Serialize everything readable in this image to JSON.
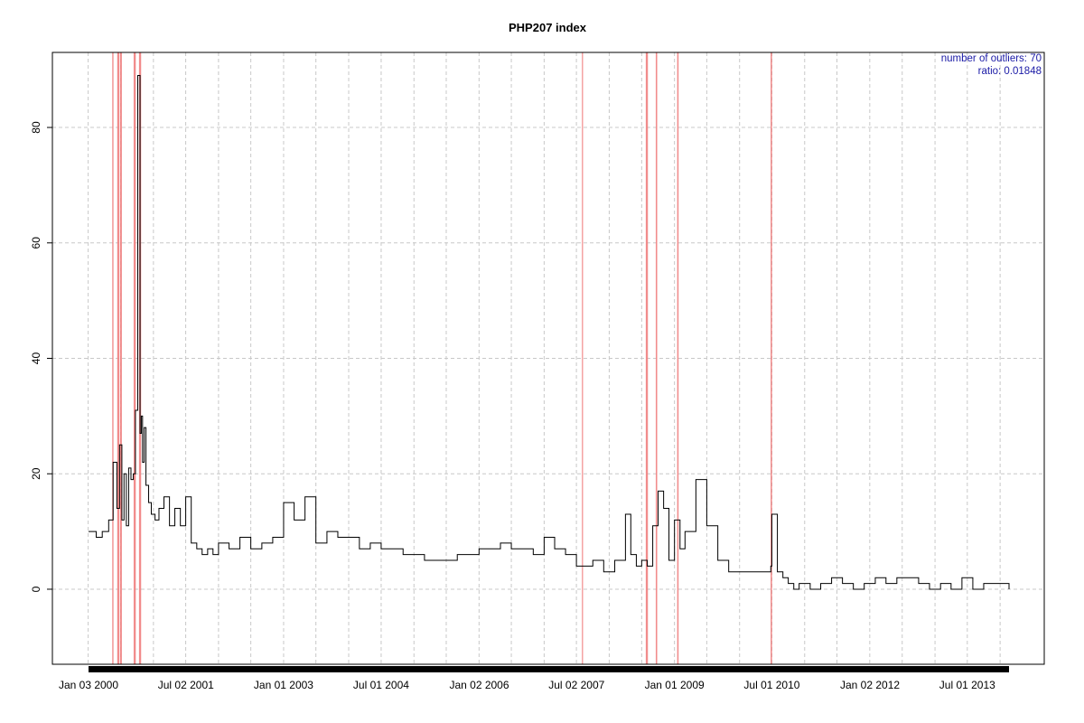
{
  "chart_data": {
    "type": "line",
    "title": "PHP207 index",
    "xlabel": "",
    "ylabel": "",
    "x_range": [
      "2000-01-03",
      "2014-02-20"
    ],
    "ylim": [
      -13,
      93
    ],
    "y_ticks": [
      0,
      20,
      40,
      60,
      80
    ],
    "x_tick_labels": [
      {
        "date": "2000-01-03",
        "label": "Jan 03 2000"
      },
      {
        "date": "2001-07-02",
        "label": "Jul 02 2001"
      },
      {
        "date": "2003-01-01",
        "label": "Jan 01 2003"
      },
      {
        "date": "2004-07-01",
        "label": "Jul 01 2004"
      },
      {
        "date": "2006-01-02",
        "label": "Jan 02 2006"
      },
      {
        "date": "2007-07-02",
        "label": "Jul 02 2007"
      },
      {
        "date": "2009-01-01",
        "label": "Jan 01 2009"
      },
      {
        "date": "2010-07-01",
        "label": "Jul 01 2010"
      },
      {
        "date": "2012-01-02",
        "label": "Jan 02 2012"
      },
      {
        "date": "2013-07-01",
        "label": "Jul 01 2013"
      }
    ],
    "grid": true,
    "line_color": "#000000",
    "outlier_color": "#f08080",
    "annotation": {
      "line1": "number of outliers:  70",
      "line2": "ratio:  0.01848"
    },
    "series": [
      {
        "x": [
          "2000-01-03",
          "2000-02-15",
          "2000-03-20",
          "2000-04-25",
          "2000-05-20",
          "2000-06-10",
          "2000-06-25",
          "2000-07-08",
          "2000-07-20",
          "2000-08-02",
          "2000-08-15",
          "2000-08-28",
          "2000-09-10",
          "2000-09-22",
          "2000-10-05",
          "2000-10-18",
          "2000-10-25",
          "2000-11-01",
          "2000-11-10",
          "2000-11-20",
          "2000-12-05",
          "2000-12-20",
          "2001-01-10",
          "2001-02-01",
          "2001-03-01",
          "2001-04-01",
          "2001-05-01",
          "2001-06-01",
          "2001-07-01",
          "2001-08-01",
          "2001-09-01",
          "2001-10-01",
          "2001-11-01",
          "2001-12-01",
          "2002-01-01",
          "2002-03-01",
          "2002-05-01",
          "2002-07-01",
          "2002-09-01",
          "2002-11-01",
          "2003-01-01",
          "2003-03-01",
          "2003-05-01",
          "2003-07-01",
          "2003-09-01",
          "2003-11-01",
          "2004-01-01",
          "2004-03-01",
          "2004-05-01",
          "2004-07-01",
          "2004-09-01",
          "2004-11-01",
          "2005-01-01",
          "2005-03-01",
          "2005-05-01",
          "2005-07-01",
          "2005-09-01",
          "2005-11-01",
          "2006-01-01",
          "2006-03-01",
          "2006-05-01",
          "2006-07-01",
          "2006-09-01",
          "2006-11-01",
          "2007-01-01",
          "2007-03-01",
          "2007-05-01",
          "2007-07-01",
          "2007-08-01",
          "2007-10-01",
          "2007-12-01",
          "2008-02-01",
          "2008-04-01",
          "2008-05-01",
          "2008-06-01",
          "2008-07-01",
          "2008-08-01",
          "2008-09-01",
          "2008-10-01",
          "2008-11-01",
          "2008-12-01",
          "2009-01-01",
          "2009-02-01",
          "2009-03-01",
          "2009-05-01",
          "2009-07-01",
          "2009-09-01",
          "2009-11-01",
          "2010-01-01",
          "2010-03-01",
          "2010-05-01",
          "2010-06-25",
          "2010-07-01",
          "2010-08-01",
          "2010-09-01",
          "2010-10-01",
          "2010-11-01",
          "2010-12-01",
          "2011-02-01",
          "2011-04-01",
          "2011-06-01",
          "2011-08-01",
          "2011-10-01",
          "2011-12-01",
          "2012-02-01",
          "2012-04-01",
          "2012-06-01",
          "2012-08-01",
          "2012-10-01",
          "2012-12-01",
          "2013-02-01",
          "2013-04-01",
          "2013-06-01",
          "2013-08-01",
          "2013-10-01",
          "2013-12-01",
          "2014-02-20"
        ],
        "y": [
          10,
          9,
          10,
          12,
          22,
          14,
          25,
          12,
          20,
          11,
          21,
          19,
          20,
          31,
          89,
          27,
          30,
          22,
          28,
          18,
          15,
          13,
          12,
          14,
          16,
          11,
          14,
          11,
          16,
          8,
          7,
          6,
          7,
          6,
          8,
          7,
          9,
          7,
          8,
          9,
          15,
          12,
          16,
          8,
          10,
          9,
          9,
          7,
          8,
          7,
          7,
          6,
          6,
          5,
          5,
          5,
          6,
          6,
          7,
          7,
          8,
          7,
          7,
          6,
          9,
          7,
          6,
          4,
          4,
          5,
          3,
          5,
          13,
          6,
          4,
          5,
          4,
          11,
          17,
          14,
          5,
          12,
          7,
          10,
          19,
          11,
          5,
          3,
          3,
          3,
          3,
          4,
          13,
          3,
          2,
          1,
          0,
          1,
          0,
          1,
          2,
          1,
          0,
          1,
          2,
          1,
          2,
          2,
          1,
          0,
          1,
          0,
          2,
          0,
          1,
          1,
          0
        ]
      }
    ],
    "outlier_bands": [
      {
        "start": "2000-05-15",
        "end": "2000-05-22"
      },
      {
        "start": "2000-06-12",
        "end": "2000-06-24"
      },
      {
        "start": "2000-06-28",
        "end": "2000-07-08"
      },
      {
        "start": "2000-09-12",
        "end": "2000-09-24"
      },
      {
        "start": "2000-10-12",
        "end": "2000-10-24"
      },
      {
        "start": "2007-08-01",
        "end": "2007-08-07"
      },
      {
        "start": "2008-07-24",
        "end": "2008-08-05"
      },
      {
        "start": "2008-09-18",
        "end": "2008-09-26"
      },
      {
        "start": "2009-01-16",
        "end": "2009-01-24"
      },
      {
        "start": "2010-06-24",
        "end": "2010-07-02"
      }
    ]
  }
}
